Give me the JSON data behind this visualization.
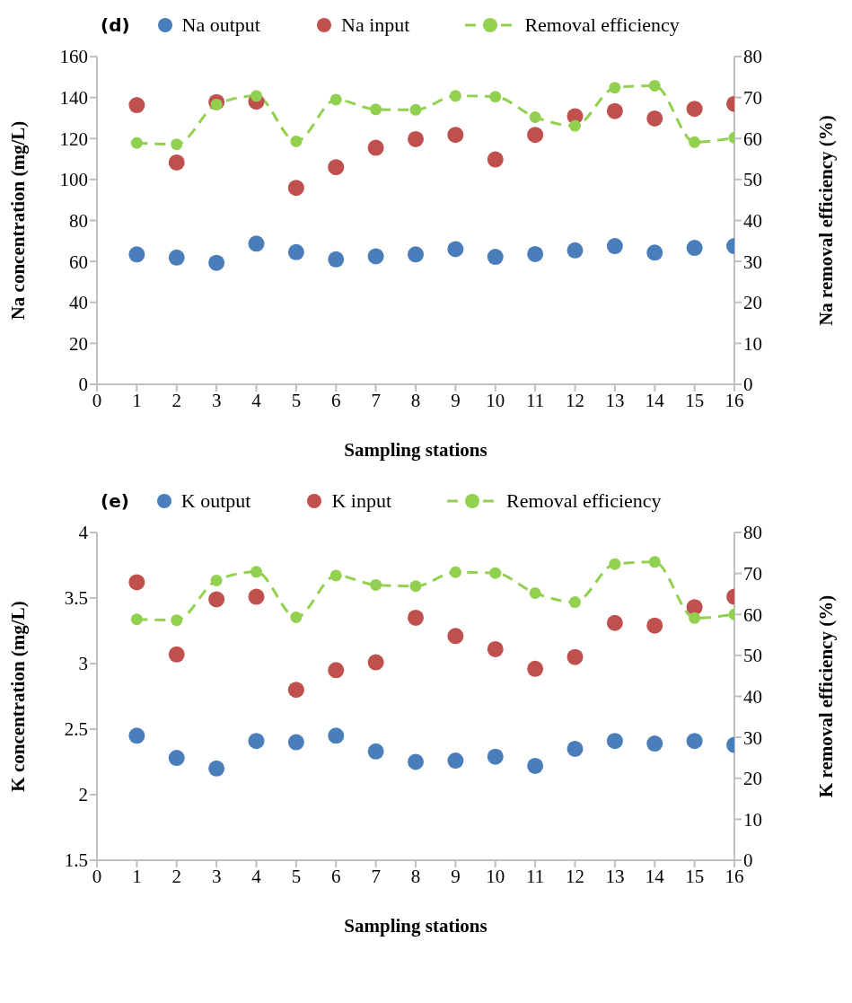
{
  "chart_data": [
    {
      "type": "scatter",
      "title": "(d)",
      "xlabel": "Sampling stations",
      "ylabel": "Na concentration (mg/L)",
      "y2label": "Na removal efficiency (%)",
      "x": [
        1,
        2,
        3,
        4,
        5,
        6,
        7,
        8,
        9,
        10,
        11,
        12,
        13,
        14,
        15,
        16
      ],
      "series": [
        {
          "name": "Na output",
          "type": "scatter",
          "color": "#4a7ebb",
          "values": [
            63.4,
            61.9,
            59.3,
            68.7,
            64.5,
            61.0,
            62.5,
            63.4,
            66.0,
            62.2,
            63.6,
            65.4,
            67.5,
            64.3,
            66.6,
            67.5
          ]
        },
        {
          "name": "Na input",
          "type": "scatter",
          "color": "#c0504d",
          "values": [
            136.3,
            108.3,
            137.8,
            138.0,
            95.9,
            106.0,
            115.5,
            119.7,
            121.8,
            109.8,
            121.8,
            130.9,
            133.4,
            129.8,
            134.5,
            136.9
          ]
        },
        {
          "name": "Removal efficiency",
          "type": "line",
          "axis": "y2",
          "line_style": "dashed",
          "color": "#92d050",
          "values": [
            58.9,
            58.6,
            68.3,
            70.4,
            59.3,
            69.5,
            67.1,
            67.0,
            70.4,
            70.2,
            65.2,
            63.1,
            72.4,
            72.9,
            59.1,
            60.2
          ]
        }
      ],
      "xlim": [
        0,
        16
      ],
      "xticks": [
        0,
        1,
        2,
        3,
        4,
        5,
        6,
        7,
        8,
        9,
        10,
        11,
        12,
        13,
        14,
        15,
        16
      ],
      "ylim": [
        0,
        160
      ],
      "yticks": [
        0,
        20,
        40,
        60,
        80,
        100,
        120,
        140,
        160
      ],
      "y2lim": [
        0,
        80
      ],
      "y2ticks": [
        0,
        10,
        20,
        30,
        40,
        50,
        60,
        70,
        80
      ],
      "marker": "circle",
      "grid": false,
      "legend": "top"
    },
    {
      "type": "scatter",
      "title": "(e)",
      "xlabel": "Sampling stations",
      "ylabel": "K concentration (mg/L)",
      "y2label": "K removal efficiency (%)",
      "x": [
        1,
        2,
        3,
        4,
        5,
        6,
        7,
        8,
        9,
        10,
        11,
        12,
        13,
        14,
        15,
        16
      ],
      "series": [
        {
          "name": "K output",
          "type": "scatter",
          "color": "#4a7ebb",
          "values": [
            2.45,
            2.28,
            2.2,
            2.41,
            2.4,
            2.45,
            2.33,
            2.25,
            2.26,
            2.29,
            2.22,
            2.35,
            2.41,
            2.39,
            2.41,
            2.38
          ]
        },
        {
          "name": "K input",
          "type": "scatter",
          "color": "#c0504d",
          "values": [
            3.62,
            3.07,
            3.49,
            3.51,
            2.8,
            2.95,
            3.01,
            3.35,
            3.21,
            3.11,
            2.96,
            3.05,
            3.31,
            3.29,
            3.43,
            3.51
          ]
        },
        {
          "name": "Removal efficiency",
          "type": "line",
          "axis": "y2",
          "line_style": "dashed",
          "color": "#92d050",
          "values": [
            58.8,
            58.6,
            68.3,
            70.4,
            59.3,
            69.5,
            67.2,
            66.9,
            70.3,
            70.1,
            65.2,
            63.0,
            72.3,
            72.8,
            59.1,
            60.0
          ]
        }
      ],
      "xlim": [
        0,
        16
      ],
      "xticks": [
        0,
        1,
        2,
        3,
        4,
        5,
        6,
        7,
        8,
        9,
        10,
        11,
        12,
        13,
        14,
        15,
        16
      ],
      "ylim": [
        1.5,
        4
      ],
      "yticks": [
        1.5,
        2,
        2.5,
        3,
        3.5,
        4
      ],
      "y2lim": [
        0,
        80
      ],
      "y2ticks": [
        0,
        10,
        20,
        30,
        40,
        50,
        60,
        70,
        80
      ],
      "marker": "circle",
      "grid": false,
      "legend": "top"
    }
  ]
}
